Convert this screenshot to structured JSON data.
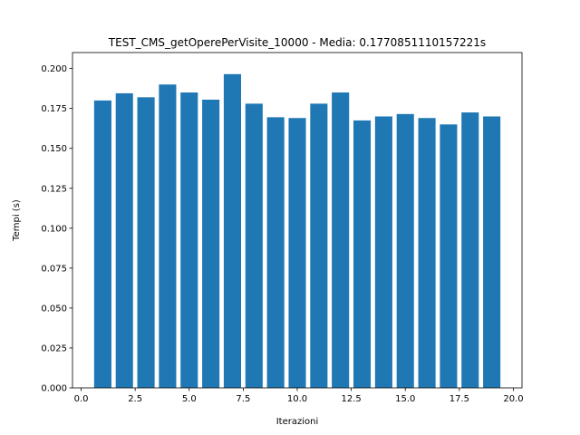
{
  "chart_data": {
    "type": "bar",
    "title": "TEST_CMS_getOperePerVisite_10000 - Media: 0.1770851110157221s",
    "xlabel": "Iterazioni",
    "ylabel": "Tempi (s)",
    "x": [
      1,
      2,
      3,
      4,
      5,
      6,
      7,
      8,
      9,
      10,
      11,
      12,
      13,
      14,
      15,
      16,
      17,
      18,
      19
    ],
    "values": [
      0.18,
      0.1845,
      0.182,
      0.19,
      0.185,
      0.1805,
      0.1965,
      0.178,
      0.1695,
      0.169,
      0.178,
      0.185,
      0.1675,
      0.17,
      0.1715,
      0.169,
      0.165,
      0.1725,
      0.17
    ],
    "xlim": [
      -0.4,
      20.4
    ],
    "ylim": [
      0,
      0.21
    ],
    "xticks": [
      0.0,
      2.5,
      5.0,
      7.5,
      10.0,
      12.5,
      15.0,
      17.5,
      20.0
    ],
    "xtick_labels": [
      "0.0",
      "2.5",
      "5.0",
      "7.5",
      "10.0",
      "12.5",
      "15.0",
      "17.5",
      "20.0"
    ],
    "yticks": [
      0.0,
      0.025,
      0.05,
      0.075,
      0.1,
      0.125,
      0.15,
      0.175,
      0.2
    ],
    "ytick_labels": [
      "0.000",
      "0.025",
      "0.050",
      "0.075",
      "0.100",
      "0.125",
      "0.150",
      "0.175",
      "0.200"
    ],
    "bar_width": 0.8,
    "bar_color": "#1f77b4",
    "grid": false,
    "legend": "none"
  }
}
